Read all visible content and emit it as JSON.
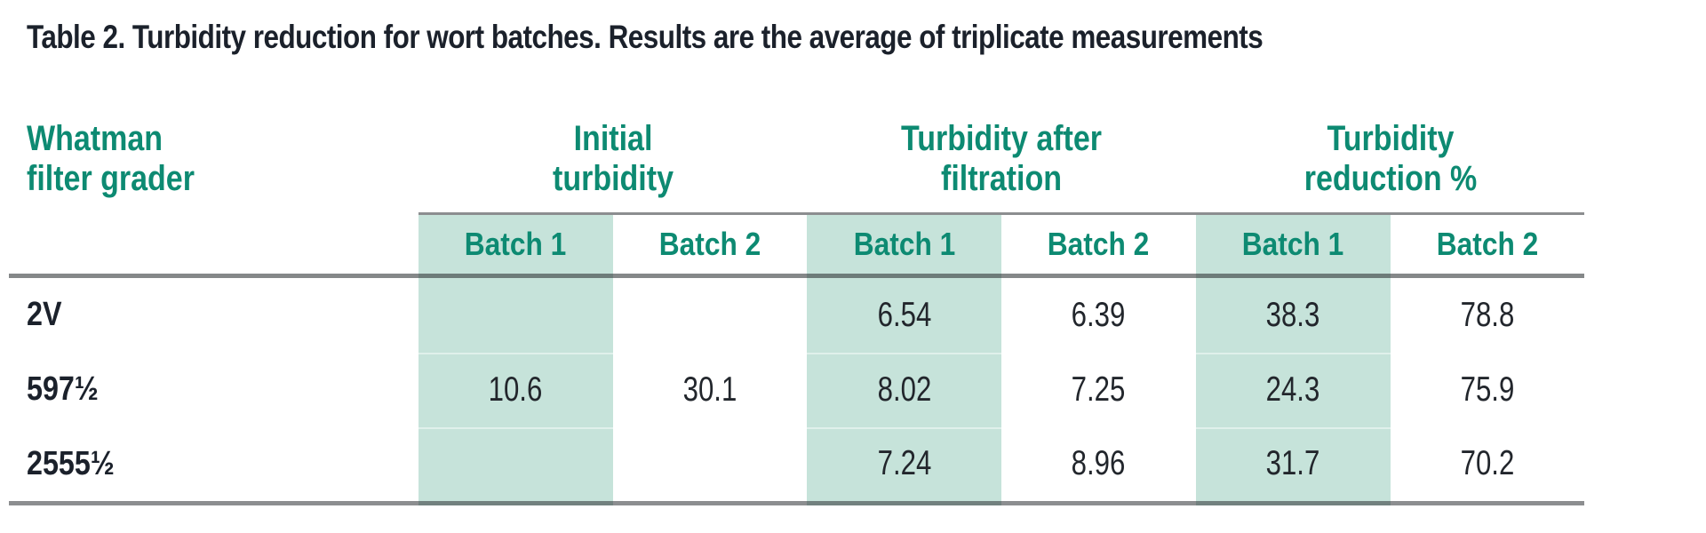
{
  "title": "Table 2. Turbidity reduction for wort batches. Results are the average of triplicate measurements",
  "colors": {
    "accent_teal": "#0D8A72",
    "batch1_column_shade": "#C6E3DA",
    "dark_text": "#1B212B",
    "rule_gray": "#8B8E90"
  },
  "table": {
    "corner": [
      "Whatman",
      "filter grader"
    ],
    "groups": [
      [
        "Initial",
        "turbidity"
      ],
      [
        "Turbidity after",
        "filtration"
      ],
      [
        "Turbidity",
        "reduction %"
      ]
    ],
    "batches": [
      "Batch 1",
      "Batch 2",
      "Batch 1",
      "Batch 2",
      "Batch 1",
      "Batch 2"
    ],
    "rows": [
      {
        "label": "2V",
        "values": [
          "",
          "",
          "6.54",
          "6.39",
          "38.3",
          "78.8"
        ]
      },
      {
        "label": "597½",
        "values": [
          "10.6",
          "30.1",
          "8.02",
          "7.25",
          "24.3",
          "75.9"
        ]
      },
      {
        "label": "2555½",
        "values": [
          "",
          "",
          "7.24",
          "8.96",
          "31.7",
          "70.2"
        ]
      }
    ]
  },
  "chart_data": {
    "type": "table",
    "title": "Table 2. Turbidity reduction for wort batches. Results are the average of triplicate measurements",
    "row_header": "Whatman filter grader",
    "column_groups": [
      "Initial turbidity",
      "Turbidity after filtration",
      "Turbidity reduction %"
    ],
    "sub_columns": [
      "Batch 1",
      "Batch 2"
    ],
    "rows": [
      {
        "filter_grade": "2V",
        "initial_turbidity": {
          "batch1": 10.6,
          "batch2": 30.1
        },
        "turbidity_after_filtration": {
          "batch1": 6.54,
          "batch2": 6.39
        },
        "turbidity_reduction_pct": {
          "batch1": 38.3,
          "batch2": 78.8
        }
      },
      {
        "filter_grade": "597½",
        "initial_turbidity": {
          "batch1": 10.6,
          "batch2": 30.1
        },
        "turbidity_after_filtration": {
          "batch1": 8.02,
          "batch2": 7.25
        },
        "turbidity_reduction_pct": {
          "batch1": 24.3,
          "batch2": 75.9
        }
      },
      {
        "filter_grade": "2555½",
        "initial_turbidity": {
          "batch1": 10.6,
          "batch2": 30.1
        },
        "turbidity_after_filtration": {
          "batch1": 7.24,
          "batch2": 8.96
        },
        "turbidity_reduction_pct": {
          "batch1": 31.7,
          "batch2": 70.2
        }
      }
    ],
    "layout_notes": "Initial turbidity values 10.6 and 30.1 are merged cells spanning all three filter-grade rows; Batch 1 columns are shaded teal"
  }
}
